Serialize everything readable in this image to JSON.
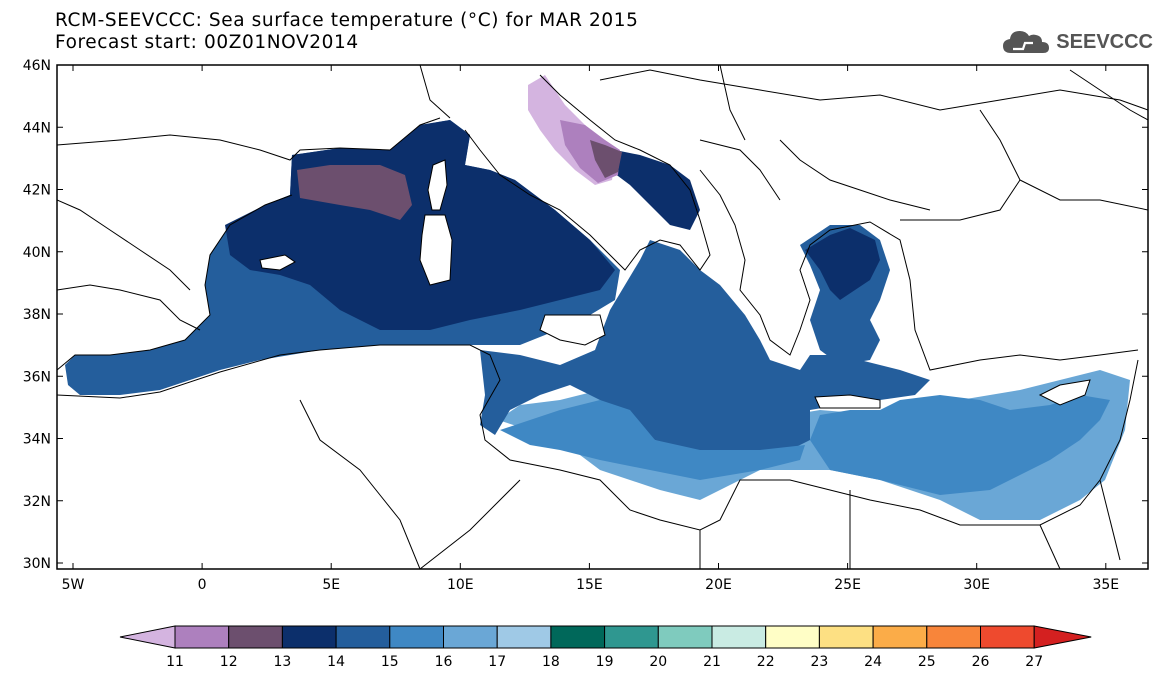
{
  "title": {
    "line1": "RCM-SEEVCCC: Sea surface temperature (°C) for MAR 2015",
    "line2": "Forecast start: 00Z01NOV2014"
  },
  "logo": {
    "text": "SEEVCCC",
    "icon": "cloud-icon",
    "color": "#555555"
  },
  "map": {
    "lon_range": [
      -5.5,
      36.5
    ],
    "lat_range": [
      29.8,
      46
    ],
    "lat_ticks": [
      "30N",
      "32N",
      "34N",
      "36N",
      "38N",
      "40N",
      "42N",
      "44N",
      "46N"
    ],
    "lon_ticks": [
      "5W",
      "0",
      "5E",
      "10E",
      "15E",
      "20E",
      "25E",
      "30E",
      "35E"
    ]
  },
  "colorbar": {
    "labels": [
      "11",
      "12",
      "13",
      "14",
      "15",
      "16",
      "17",
      "18",
      "19",
      "20",
      "21",
      "22",
      "23",
      "24",
      "25",
      "26",
      "27"
    ],
    "colors": [
      "#d4b4e0",
      "#ad80be",
      "#6c4f6e",
      "#0c2f6b",
      "#245e9c",
      "#3f88c4",
      "#6aa7d6",
      "#9fc9e6",
      "#00685a",
      "#2f9790",
      "#7fcbbe",
      "#c9ebe3",
      "#fffec6",
      "#fde083",
      "#fbac48",
      "#f8853a",
      "#ee4a2e",
      "#d42020"
    ]
  }
}
